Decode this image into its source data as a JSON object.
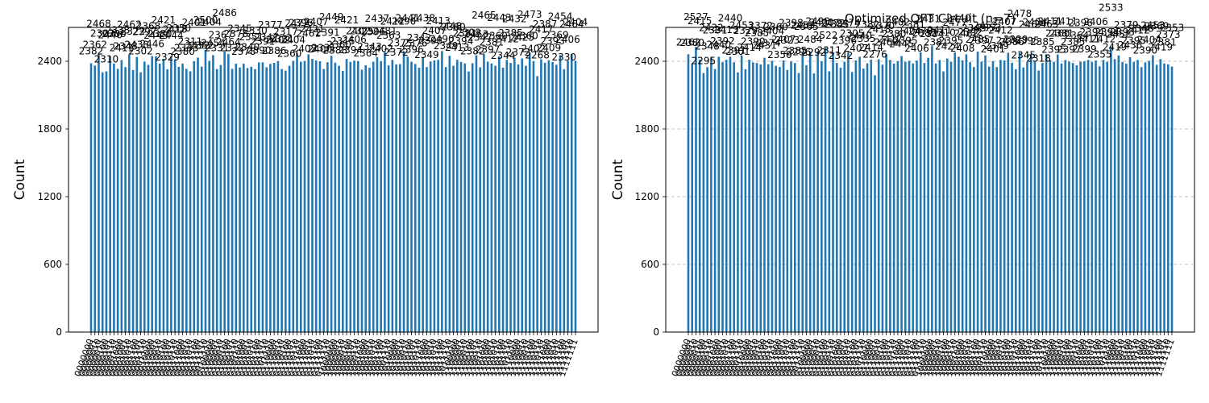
{
  "chart_data": [
    {
      "type": "bar",
      "title": "",
      "xlabel": "",
      "ylabel": "Count",
      "ylim": [
        0,
        2700
      ],
      "yticks": [
        0,
        600,
        1200,
        1800,
        2400
      ],
      "grid": false,
      "categories": [
        "0000000",
        "0000001",
        "0000010",
        "0000011",
        "0000100",
        "0000101",
        "0000110",
        "0000111",
        "0001000",
        "0001001",
        "0001010",
        "0001011",
        "0001100",
        "0001101",
        "0001110",
        "0001111",
        "0010000",
        "0010001",
        "0010010",
        "0010011",
        "0010100",
        "0010101",
        "0010110",
        "0010111",
        "0011000",
        "0011001",
        "0011010",
        "0011011",
        "0011100",
        "0011101",
        "0011110",
        "0011111",
        "0100000",
        "0100001",
        "0100010",
        "0100011",
        "0100100",
        "0100101",
        "0100110",
        "0100111",
        "0101000",
        "0101001",
        "0101010",
        "0101011",
        "0101100",
        "0101101",
        "0101110",
        "0101111",
        "0110000",
        "0110001",
        "0110010",
        "0110011",
        "0110100",
        "0110101",
        "0110110",
        "0110111",
        "0111000",
        "0111001",
        "0111010",
        "0111011",
        "0111100",
        "0111101",
        "0111110",
        "0111111",
        "1000000",
        "1000001",
        "1000010",
        "1000011",
        "1000100",
        "1000101",
        "1000110",
        "1000111",
        "1001000",
        "1001001",
        "1001010",
        "1001011",
        "1001100",
        "1001101",
        "1001110",
        "1001111",
        "1010000",
        "1010001",
        "1010010",
        "1010011",
        "1010100",
        "1010101",
        "1010110",
        "1010111",
        "1011000",
        "1011001",
        "1011010",
        "1011011",
        "1011100",
        "1011101",
        "1011110",
        "1011111",
        "1100000",
        "1100001",
        "1100010",
        "1100011",
        "1100100",
        "1100101",
        "1100110",
        "1100111",
        "1101000",
        "1101001",
        "1101010",
        "1101011",
        "1101100",
        "1101101",
        "1101110",
        "1101111",
        "1110000",
        "1110001",
        "1110010",
        "1110011",
        "1110100",
        "1110101",
        "1110110",
        "1110111",
        "1111000",
        "1111001",
        "1111010",
        "1111011",
        "1111100",
        "1111101",
        "1111110",
        "1111111"
      ],
      "values": [
        2382,
        2362,
        2468,
        2302,
        2310,
        2446,
        2380,
        2333,
        2411,
        2348,
        2462,
        2322,
        2438,
        2302,
        2397,
        2368,
        2446,
        2443,
        2380,
        2421,
        2329,
        2444,
        2418,
        2350,
        2380,
        2333,
        2311,
        2401,
        2432,
        2352,
        2500,
        2404,
        2454,
        2331,
        2367,
        2486,
        2464,
        2332,
        2378,
        2345,
        2378,
        2340,
        2351,
        2330,
        2390,
        2391,
        2347,
        2377,
        2386,
        2402,
        2331,
        2317,
        2360,
        2404,
        2472,
        2396,
        2403,
        2461,
        2421,
        2407,
        2400,
        2331,
        2391,
        2449,
        2388,
        2360,
        2315,
        2421,
        2394,
        2406,
        2402,
        2325,
        2364,
        2343,
        2396,
        2437,
        2402,
        2481,
        2363,
        2412,
        2372,
        2375,
        2490,
        2441,
        2396,
        2376,
        2342,
        2438,
        2349,
        2398,
        2407,
        2413,
        2490,
        2349,
        2448,
        2360,
        2413,
        2394,
        2381,
        2309,
        2382,
        2453,
        2347,
        2465,
        2397,
        2381,
        2360,
        2443,
        2344,
        2412,
        2385,
        2432,
        2372,
        2425,
        2360,
        2473,
        2402,
        2268,
        2417,
        2387,
        2409,
        2393,
        2369,
        2454,
        2330,
        2406,
        2464,
        2404
      ],
      "data_labels": [
        "2382",
        "2362",
        "2468",
        "2302",
        "2310",
        "2446",
        "2380",
        "2333",
        "2411",
        "2348",
        "2462",
        "2322",
        "2438",
        "2302",
        "2397",
        "2368",
        "2446",
        "2443",
        "2380",
        "2421",
        "2329",
        "2444",
        "2418",
        "2350",
        "2380",
        "2333",
        "2311",
        "2401",
        "2432",
        "2352",
        "2500",
        "2404",
        "2454",
        "2331",
        "2367",
        "2486",
        "2464",
        "2332",
        "2378",
        "2345",
        "2378",
        "2340",
        "2351",
        "2330",
        "2390",
        "2391",
        "2347",
        "2377",
        "2386",
        "2402",
        "2331",
        "2317",
        "2360",
        "2404",
        "2472",
        "2396",
        "2403",
        "2461",
        "2421",
        "2407",
        "2400",
        "2331",
        "2391",
        "2449",
        "2388",
        "2360",
        "2315",
        "2421",
        "2394",
        "2406",
        "2402",
        "2325",
        "2364",
        "2343",
        "2396",
        "2437",
        "2402",
        "2481",
        "2363",
        "2412",
        "2372",
        "2375",
        "2490",
        "2441",
        "2396",
        "2376",
        "2342",
        "2438",
        "2349",
        "2398",
        "2407",
        "2413",
        "2490",
        "2349",
        "2448",
        "2360",
        "2413",
        "2394",
        "2381",
        "2309",
        "2382",
        "2453",
        "2347",
        "2465",
        "2397",
        "2381",
        "2360",
        "2443",
        "2344",
        "2412",
        "2385",
        "2432",
        "2372",
        "2425",
        "2360",
        "2473",
        "2402",
        "2268",
        "2417",
        "2387",
        "2409",
        "2393",
        "2369",
        "2454",
        "2330",
        "2406",
        "2464",
        "2404"
      ]
    },
    {
      "type": "bar",
      "title": "Optimized QFT Circuit (n=7)",
      "xlabel": "",
      "ylabel": "Count",
      "ylim": [
        0,
        2700
      ],
      "yticks": [
        0,
        600,
        1200,
        1800,
        2400
      ],
      "grid": true,
      "categories": [
        "0000000",
        "0000001",
        "0000010",
        "0000011",
        "0000100",
        "0000101",
        "0000110",
        "0000111",
        "0001000",
        "0001001",
        "0001010",
        "0001011",
        "0001100",
        "0001101",
        "0001110",
        "0001111",
        "0010000",
        "0010001",
        "0010010",
        "0010011",
        "0010100",
        "0010101",
        "0010110",
        "0010111",
        "0011000",
        "0011001",
        "0011010",
        "0011011",
        "0011100",
        "0011101",
        "0011110",
        "0011111",
        "0100000",
        "0100001",
        "0100010",
        "0100011",
        "0100100",
        "0100101",
        "0100110",
        "0100111",
        "0101000",
        "0101001",
        "0101010",
        "0101011",
        "0101100",
        "0101101",
        "0101110",
        "0101111",
        "0110000",
        "0110001",
        "0110010",
        "0110011",
        "0110100",
        "0110101",
        "0110110",
        "0110111",
        "0111000",
        "0111001",
        "0111010",
        "0111011",
        "0111100",
        "0111101",
        "0111110",
        "0111111",
        "1000000",
        "1000001",
        "1000010",
        "1000011",
        "1000100",
        "1000101",
        "1000110",
        "1000111",
        "1001000",
        "1001001",
        "1001010",
        "1001011",
        "1001100",
        "1001101",
        "1001110",
        "1001111",
        "1010000",
        "1010001",
        "1010010",
        "1010011",
        "1010100",
        "1010101",
        "1010110",
        "1010111",
        "1011000",
        "1011001",
        "1011010",
        "1011011",
        "1011100",
        "1011101",
        "1011110",
        "1011111",
        "1100000",
        "1100001",
        "1100010",
        "1100011",
        "1100100",
        "1100101",
        "1100110",
        "1100111",
        "1101000",
        "1101001",
        "1101010",
        "1101011",
        "1101100",
        "1101101",
        "1101110",
        "1101111",
        "1110000",
        "1110001",
        "1110010",
        "1110011",
        "1110100",
        "1110101",
        "1110110",
        "1110111",
        "1111000",
        "1111001",
        "1111010",
        "1111011",
        "1111100",
        "1111101",
        "1111110",
        "1111111"
      ],
      "values": [
        2462,
        2380,
        2527,
        2415,
        2295,
        2348,
        2432,
        2331,
        2440,
        2392,
        2413,
        2440,
        2391,
        2301,
        2453,
        2329,
        2414,
        2390,
        2385,
        2372,
        2431,
        2374,
        2404,
        2360,
        2350,
        2407,
        2323,
        2398,
        2385,
        2296,
        2453,
        2365,
        2484,
        2292,
        2490,
        2400,
        2522,
        2311,
        2472,
        2385,
        2342,
        2396,
        2474,
        2305,
        2407,
        2440,
        2335,
        2382,
        2414,
        2276,
        2418,
        2370,
        2462,
        2412,
        2380,
        2402,
        2445,
        2395,
        2404,
        2381,
        2406,
        2479,
        2385,
        2431,
        2534,
        2381,
        2411,
        2310,
        2424,
        2395,
        2477,
        2440,
        2408,
        2462,
        2392,
        2349,
        2485,
        2397,
        2452,
        2353,
        2401,
        2349,
        2412,
        2407,
        2476,
        2386,
        2329,
        2478,
        2345,
        2395,
        2462,
        2404,
        2318,
        2385,
        2463,
        2411,
        2395,
        2460,
        2381,
        2411,
        2397,
        2385,
        2364,
        2396,
        2399,
        2411,
        2394,
        2406,
        2355,
        2412,
        2394,
        2533,
        2419,
        2452,
        2393,
        2379,
        2436,
        2395,
        2412,
        2348,
        2390,
        2404,
        2453,
        2369,
        2419,
        2381,
        2373,
        2353
      ],
      "data_labels": [
        "2462",
        "2380",
        "2527",
        "2415",
        "2295",
        "2348",
        "2432",
        "2331",
        "2440",
        "2392",
        "2413",
        "2440",
        "2391",
        "2301",
        "2453",
        "2329",
        "2414",
        "2390",
        "2385",
        "2372",
        "2431",
        "2374",
        "2404",
        "2360",
        "2350",
        "2407",
        "2323",
        "2398",
        "2385",
        "2296",
        "2453",
        "2365",
        "2484",
        "2292",
        "2490",
        "2400",
        "2522",
        "2311",
        "2472",
        "2385",
        "2342",
        "2396",
        "2474",
        "2305",
        "2407",
        "2440",
        "2335",
        "2382",
        "2414",
        "2276",
        "2418",
        "2370",
        "2462",
        "2412",
        "2380",
        "2402",
        "2445",
        "2395",
        "2404",
        "2381",
        "2406",
        "2479",
        "2385",
        "2431",
        "2534",
        "2381",
        "2411",
        "2310",
        "2424",
        "2395",
        "2477",
        "2440",
        "2408",
        "2462",
        "2392",
        "2349",
        "2485",
        "2397",
        "2452",
        "2353",
        "2401",
        "2349",
        "2412",
        "2407",
        "2476",
        "2386",
        "2329",
        "2478",
        "2345",
        "2395",
        "2462",
        "2404",
        "2318",
        "2385",
        "2463",
        "2411",
        "2395",
        "2460",
        "2381",
        "2411",
        "2397",
        "2385",
        "2364",
        "2396",
        "2399",
        "2411",
        "2394",
        "2406",
        "2355",
        "2412",
        "2394",
        "2533",
        "2419",
        "2452",
        "2393",
        "2379",
        "2436",
        "2395",
        "2412",
        "2348",
        "2390",
        "2404",
        "2453",
        "2369",
        "2419",
        "2381",
        "2373",
        "2353"
      ]
    }
  ]
}
